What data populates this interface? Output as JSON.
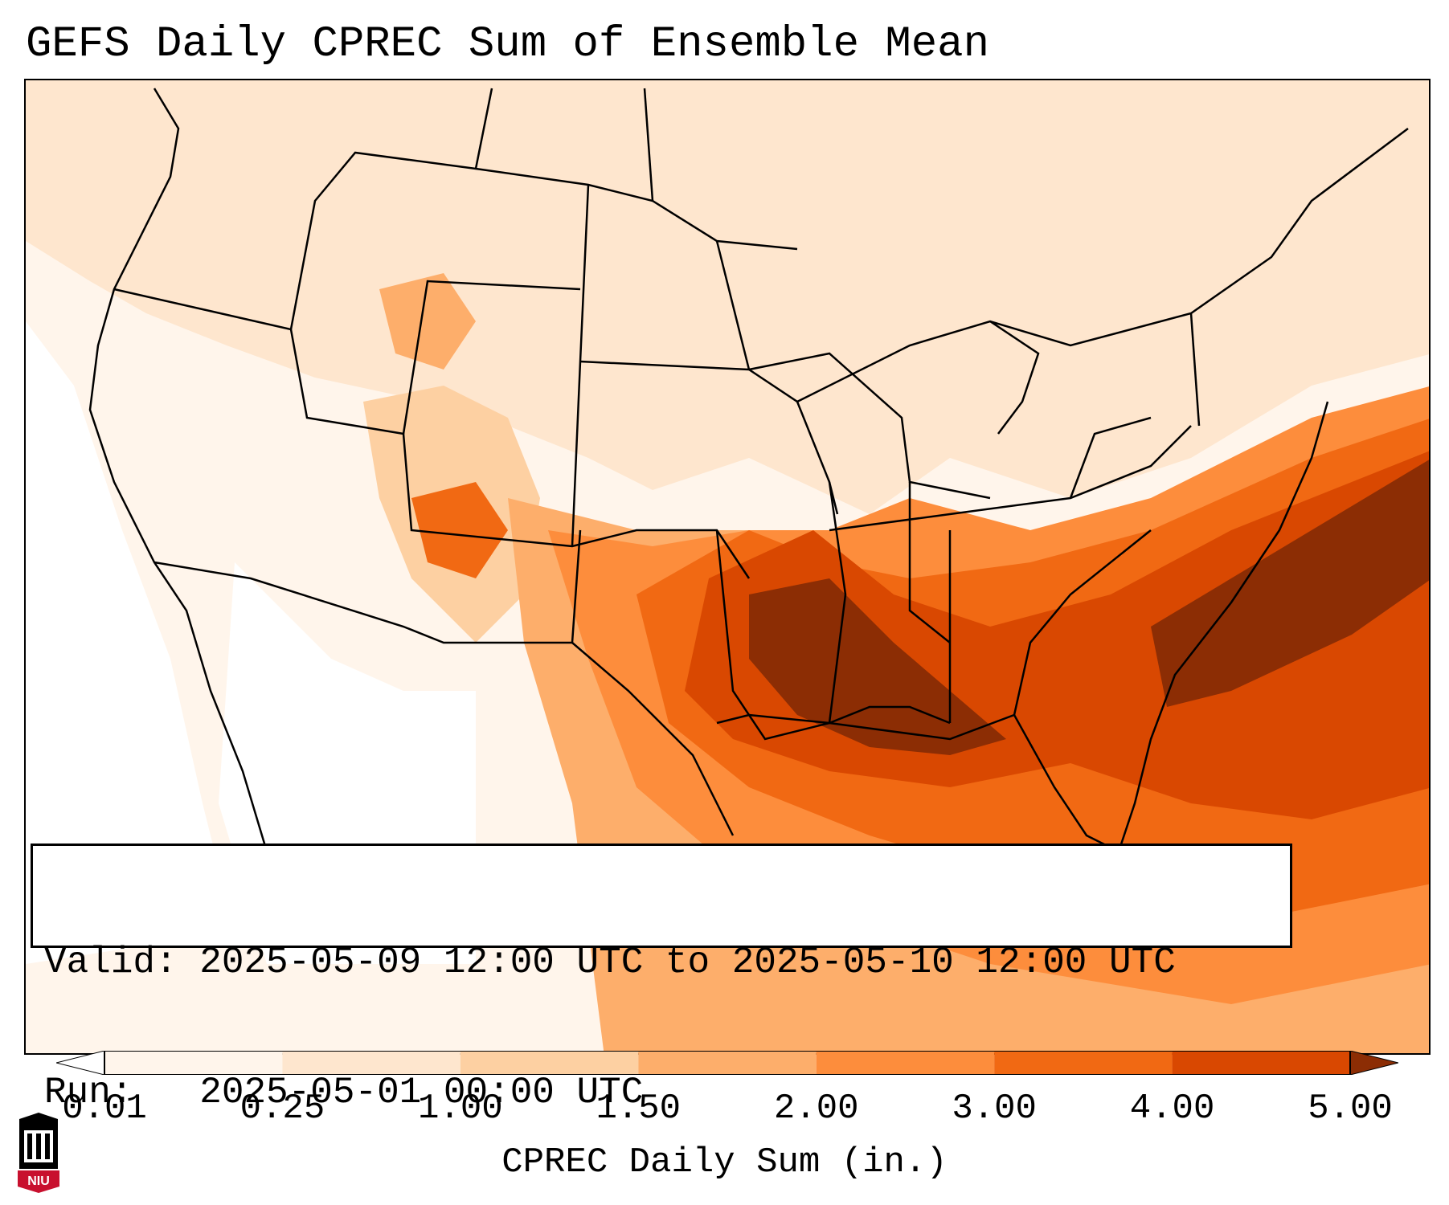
{
  "title": "GEFS Daily CPREC Sum of Ensemble Mean",
  "info": {
    "valid": "Valid: 2025-05-09 12:00 UTC to 2025-05-10 12:00 UTC",
    "run": "Run:   2025-05-01 00:00 UTC"
  },
  "colorbar": {
    "label": "CPREC Daily Sum (in.)",
    "ticks": [
      "0.01",
      "0.25",
      "1.00",
      "1.50",
      "2.00",
      "3.00",
      "4.00",
      "5.00"
    ],
    "colors": [
      "#fff5eb",
      "#fee6ce",
      "#fdd0a2",
      "#fdae6b",
      "#fd8d3c",
      "#f16913",
      "#d94801",
      "#8c2d04"
    ],
    "extend": "both"
  },
  "logo": {
    "text": "NIU",
    "colors": {
      "red": "#c8102e",
      "black": "#000000"
    }
  }
}
